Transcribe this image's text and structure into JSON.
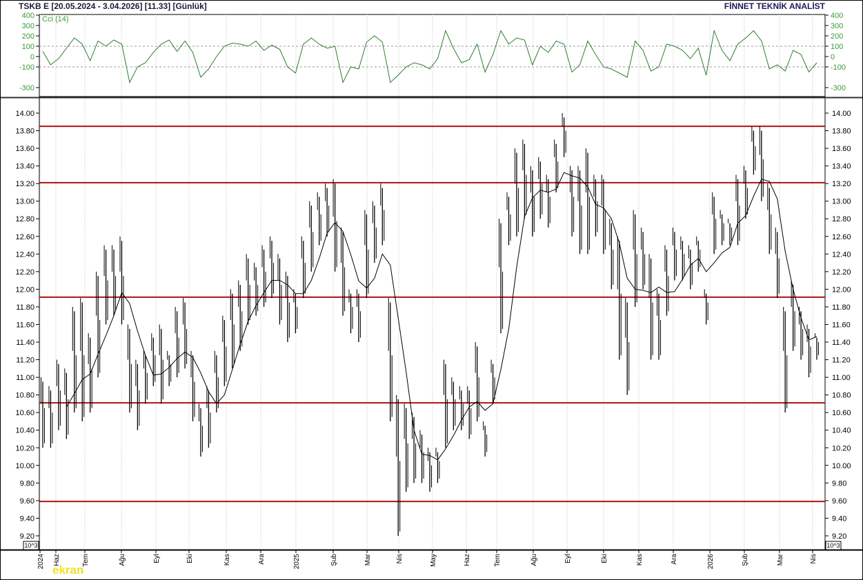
{
  "header": {
    "title": "TSKB  E  [20.05.2024 - 3.04.2026]  [11.33]  [Günlük]",
    "brand": "FİNNET TEKNİK ANALİST"
  },
  "logo": "ekran",
  "scale_box": "10^3",
  "colors": {
    "price_bars": "#000000",
    "moving_average": "#000000",
    "support_resistance": "#b01010",
    "cci_line": "#2e7d2e",
    "cci_axis_text": "#3a9a3a"
  },
  "chart_data": [
    {
      "type": "line",
      "title": "Cci (14)",
      "ylim": [
        -350,
        420
      ],
      "yticks": [
        400,
        300,
        200,
        100,
        0,
        -100,
        -300
      ],
      "reference_lines": [
        100,
        -100
      ],
      "grid": true,
      "values": [
        50,
        -80,
        -20,
        80,
        180,
        120,
        -40,
        150,
        100,
        160,
        120,
        -250,
        -100,
        -60,
        40,
        120,
        160,
        50,
        150,
        40,
        -200,
        -120,
        0,
        100,
        130,
        120,
        100,
        150,
        60,
        110,
        70,
        -100,
        -160,
        120,
        180,
        120,
        80,
        100,
        -250,
        -100,
        -120,
        140,
        200,
        140,
        -250,
        -180,
        -100,
        -60,
        -80,
        -120,
        -20,
        250,
        80,
        -60,
        -30,
        120,
        -150,
        20,
        250,
        120,
        180,
        160,
        -80,
        100,
        40,
        150,
        120,
        -150,
        -80,
        150,
        20,
        -100,
        -120,
        -160,
        -200,
        150,
        60,
        -140,
        -100,
        120,
        100,
        60,
        -20,
        80,
        -180,
        250,
        60,
        -40,
        120,
        180,
        250,
        150,
        -120,
        -80,
        -140,
        60,
        20,
        -150,
        -60
      ]
    },
    {
      "type": "bar",
      "subtype": "high-low price bars with moving average",
      "ylim": [
        9.1,
        14.17
      ],
      "yticks": [
        "14.00",
        "13.80",
        "13.60",
        "13.40",
        "13.20",
        "13.00",
        "12.80",
        "12.60",
        "12.40",
        "12.20",
        "12.00",
        "11.80",
        "11.60",
        "11.40",
        "11.20",
        "11.00",
        "10.80",
        "10.60",
        "10.40",
        "10.20",
        "10.00",
        "9.80",
        "9.60",
        "9.40",
        "9.20"
      ],
      "xticks": [
        "2024",
        "Haz",
        "Tem",
        "Ağu",
        "Eyl",
        "Eki",
        "Kas",
        "Ara",
        "2025",
        "Şub",
        "Mar",
        "Nis",
        "May",
        "Haz",
        "Tem",
        "Ağu",
        "Eyl",
        "Eki",
        "Kas",
        "Ara",
        "2026",
        "Şub",
        "Mar",
        "Nis"
      ],
      "horizontal_levels": [
        13.85,
        13.21,
        11.91,
        10.71,
        9.59
      ],
      "last_price": 11.33,
      "grid": true,
      "bars_high_low": [
        [
          11.0,
          10.2
        ],
        [
          10.9,
          10.2
        ],
        [
          11.2,
          10.4
        ],
        [
          11.1,
          10.3
        ],
        [
          11.8,
          10.6
        ],
        [
          11.9,
          10.5
        ],
        [
          11.5,
          10.6
        ],
        [
          12.2,
          11.0
        ],
        [
          12.5,
          11.6
        ],
        [
          12.5,
          11.7
        ],
        [
          12.6,
          11.6
        ],
        [
          11.6,
          10.6
        ],
        [
          11.2,
          10.4
        ],
        [
          11.3,
          10.7
        ],
        [
          11.5,
          10.9
        ],
        [
          11.6,
          10.7
        ],
        [
          11.3,
          10.9
        ],
        [
          11.8,
          11.0
        ],
        [
          11.9,
          11.1
        ],
        [
          11.3,
          10.5
        ],
        [
          10.7,
          10.1
        ],
        [
          10.9,
          10.2
        ],
        [
          11.3,
          10.6
        ],
        [
          11.7,
          10.9
        ],
        [
          12.0,
          11.1
        ],
        [
          12.1,
          11.3
        ],
        [
          12.4,
          11.6
        ],
        [
          12.3,
          11.7
        ],
        [
          12.5,
          11.8
        ],
        [
          12.6,
          11.9
        ],
        [
          12.4,
          11.6
        ],
        [
          12.2,
          11.4
        ],
        [
          12.0,
          11.5
        ],
        [
          12.6,
          11.9
        ],
        [
          13.0,
          12.2
        ],
        [
          13.1,
          12.5
        ],
        [
          13.2,
          12.6
        ],
        [
          13.25,
          12.2
        ],
        [
          12.7,
          11.7
        ],
        [
          12.0,
          11.5
        ],
        [
          12.0,
          11.4
        ],
        [
          12.9,
          11.9
        ],
        [
          13.0,
          12.3
        ],
        [
          13.2,
          12.5
        ],
        [
          11.9,
          10.5
        ],
        [
          10.8,
          9.2
        ],
        [
          10.7,
          9.7
        ],
        [
          10.6,
          9.8
        ],
        [
          10.4,
          9.8
        ],
        [
          10.2,
          9.7
        ],
        [
          10.2,
          9.8
        ],
        [
          11.2,
          10.2
        ],
        [
          11.0,
          10.4
        ],
        [
          10.9,
          10.4
        ],
        [
          10.9,
          10.3
        ],
        [
          11.4,
          10.5
        ],
        [
          10.5,
          10.1
        ],
        [
          11.2,
          10.7
        ],
        [
          12.8,
          11.5
        ],
        [
          13.1,
          12.5
        ],
        [
          13.6,
          12.6
        ],
        [
          13.7,
          12.8
        ],
        [
          13.4,
          12.6
        ],
        [
          13.5,
          12.8
        ],
        [
          13.3,
          12.7
        ],
        [
          13.7,
          13.1
        ],
        [
          14.0,
          13.5
        ],
        [
          13.4,
          12.6
        ],
        [
          13.4,
          12.4
        ],
        [
          13.6,
          12.4
        ],
        [
          13.3,
          12.6
        ],
        [
          13.3,
          12.4
        ],
        [
          12.8,
          12.0
        ],
        [
          12.6,
          11.2
        ],
        [
          11.9,
          10.8
        ],
        [
          12.9,
          11.8
        ],
        [
          12.7,
          12.0
        ],
        [
          12.4,
          11.2
        ],
        [
          12.0,
          11.2
        ],
        [
          12.5,
          11.7
        ],
        [
          12.7,
          12.1
        ],
        [
          12.6,
          12.1
        ],
        [
          12.5,
          12.0
        ],
        [
          12.6,
          12.2
        ],
        [
          12.0,
          11.6
        ],
        [
          13.1,
          12.4
        ],
        [
          12.9,
          12.5
        ],
        [
          12.8,
          12.5
        ],
        [
          13.3,
          12.5
        ],
        [
          13.4,
          12.8
        ],
        [
          13.85,
          13.3
        ],
        [
          13.85,
          13.0
        ],
        [
          13.2,
          12.4
        ],
        [
          12.7,
          11.9
        ],
        [
          11.8,
          10.6
        ],
        [
          12.1,
          11.3
        ],
        [
          11.8,
          11.2
        ],
        [
          11.6,
          11.0
        ],
        [
          11.5,
          11.2
        ]
      ]
    }
  ]
}
